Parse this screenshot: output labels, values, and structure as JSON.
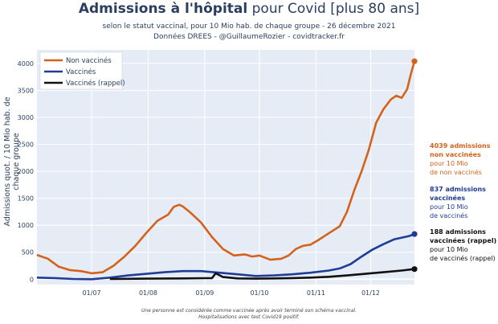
{
  "title_bold": "Admissions à l'hôpital",
  "title_rest": " pour Covid [plus 80 ans]",
  "subtitle1": "selon le statut vaccinal, pour 10 Mio hab. de chaque groupe - 26 décembre 2021",
  "subtitle2": "Données DREES - @GuillaumeRozier - covidtracker.fr",
  "footnote1": "Une personne est considérée comme vaccinée après avoir terminé son schéma vaccinal.",
  "footnote2": "Hospitalisations avec test Covid19 positif.",
  "annotations": [
    {
      "bold1": "4039 admissions",
      "bold2": "non vaccinées",
      "line3": "pour 10 Mio",
      "line4": "de non vaccinés",
      "color": "#d4621a"
    },
    {
      "bold1": "837 admissions",
      "bold2": "vaccinées",
      "line3": "pour 10 Mio",
      "line4": "de vaccinés",
      "color": "#1f3c96"
    },
    {
      "bold1": "188 admissions",
      "bold2": "vaccinées (rappel)",
      "line3": "pour 10 Mio",
      "line4": "de vaccinés (rappel)",
      "color": "#111111"
    }
  ],
  "chart_data": {
    "type": "line",
    "title": "Admissions à l'hôpital pour Covid [plus 80 ans]",
    "ylabel": "Admissions quot. / 10 Mio hab. de chaque groupe",
    "xlabel": "",
    "ylim": [
      -100,
      4250
    ],
    "yticks": [
      0,
      500,
      1000,
      1500,
      2000,
      2500,
      3000,
      3500,
      4000
    ],
    "xlim": [
      0,
      207
    ],
    "xticks": [
      {
        "day": 30,
        "label": "01/07"
      },
      {
        "day": 61,
        "label": "01/08"
      },
      {
        "day": 92,
        "label": "01/09"
      },
      {
        "day": 122,
        "label": "01/10"
      },
      {
        "day": 153,
        "label": "01/11"
      },
      {
        "day": 183,
        "label": "01/12"
      }
    ],
    "legend_position": "top-left",
    "series": [
      {
        "name": "Non vaccinés",
        "color": "#d4621a",
        "x": [
          0,
          6,
          12,
          18,
          24,
          30,
          36,
          42,
          48,
          54,
          60,
          66,
          72,
          75,
          78,
          80,
          84,
          90,
          96,
          102,
          108,
          114,
          118,
          122,
          128,
          134,
          138,
          142,
          146,
          150,
          154,
          160,
          166,
          170,
          174,
          178,
          182,
          186,
          190,
          194,
          197,
          200,
          203,
          205,
          207
        ],
        "y": [
          450,
          380,
          230,
          170,
          150,
          110,
          130,
          250,
          420,
          620,
          860,
          1080,
          1200,
          1340,
          1380,
          1350,
          1240,
          1050,
          780,
          560,
          440,
          460,
          420,
          440,
          360,
          380,
          440,
          560,
          620,
          640,
          720,
          850,
          980,
          1250,
          1650,
          2000,
          2400,
          2900,
          3150,
          3330,
          3400,
          3360,
          3520,
          3800,
          4039
        ]
      },
      {
        "name": "Vaccinés",
        "color": "#1f3c96",
        "x": [
          0,
          10,
          20,
          30,
          40,
          50,
          60,
          70,
          80,
          90,
          100,
          110,
          120,
          130,
          140,
          150,
          160,
          166,
          172,
          178,
          184,
          190,
          196,
          200,
          204,
          207
        ],
        "y": [
          30,
          20,
          5,
          0,
          30,
          70,
          100,
          130,
          150,
          150,
          120,
          90,
          60,
          70,
          90,
          120,
          160,
          200,
          280,
          420,
          550,
          650,
          740,
          770,
          800,
          837
        ]
      },
      {
        "name": "Vaccinés (rappel)",
        "color": "#111111",
        "x": [
          40,
          60,
          80,
          96,
          98,
          102,
          110,
          120,
          130,
          140,
          150,
          160,
          170,
          180,
          190,
          200,
          207
        ],
        "y": [
          5,
          10,
          15,
          20,
          110,
          40,
          15,
          10,
          15,
          20,
          30,
          45,
          70,
          100,
          130,
          160,
          188
        ]
      }
    ]
  }
}
